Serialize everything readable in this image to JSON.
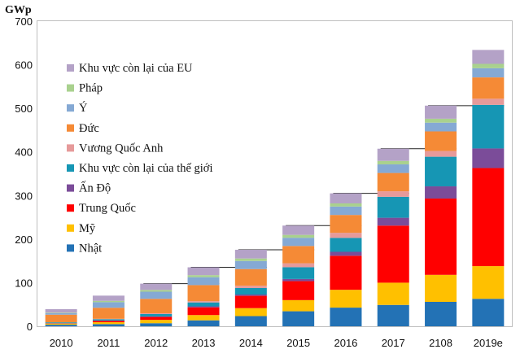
{
  "chart_data": {
    "type": "bar",
    "stacked": true,
    "y_unit": "GWp",
    "ylim": [
      0,
      700
    ],
    "yticks": [
      0,
      100,
      200,
      300,
      400,
      500,
      600,
      700
    ],
    "categories": [
      "2010",
      "2011",
      "2012",
      "2013",
      "2014",
      "2015",
      "2016",
      "2017",
      "2108",
      "2019e"
    ],
    "series": [
      {
        "name": "Nhật",
        "color": "#2372b5",
        "values": [
          3.6,
          4.9,
          7.0,
          13.6,
          23.3,
          34.4,
          42.8,
          49.0,
          56.0,
          63.0
        ]
      },
      {
        "name": "Mỹ",
        "color": "#ffc000",
        "values": [
          2.5,
          4.4,
          7.7,
          12.1,
          18.3,
          25.6,
          40.9,
          51.0,
          62.0,
          75.0
        ]
      },
      {
        "name": "Trung Quốc",
        "color": "#ff0000",
        "values": [
          0.8,
          3.3,
          6.7,
          17.7,
          28.2,
          43.5,
          78.1,
          131.0,
          175.0,
          225.0
        ]
      },
      {
        "name": "Ấn Độ",
        "color": "#7b4c99",
        "values": [
          0.1,
          0.5,
          1.2,
          2.3,
          3.0,
          5.0,
          9.0,
          18.0,
          28.0,
          45.0
        ]
      },
      {
        "name": "Khu vực còn lại của thế giới",
        "color": "#1696b4",
        "values": [
          2.0,
          3.0,
          5.5,
          9.0,
          15.0,
          27.0,
          32.0,
          48.0,
          68.0,
          100.0
        ]
      },
      {
        "name": "Vương Quốc Anh",
        "color": "#e69a9a",
        "values": [
          0.1,
          1.0,
          1.8,
          3.0,
          5.2,
          9.0,
          11.7,
          12.7,
          13.1,
          14.0
        ]
      },
      {
        "name": "Đức",
        "color": "#f58a36",
        "values": [
          17.5,
          25.4,
          33.0,
          36.7,
          38.2,
          39.7,
          40.9,
          42.0,
          45.0,
          49.0
        ]
      },
      {
        "name": "Ý",
        "color": "#85a9d4",
        "values": [
          3.5,
          12.8,
          16.4,
          18.2,
          18.6,
          18.9,
          19.3,
          19.7,
          20.1,
          21.0
        ]
      },
      {
        "name": "Pháp",
        "color": "#a9d18e",
        "values": [
          1.2,
          3.0,
          4.0,
          4.7,
          5.7,
          6.6,
          7.2,
          8.0,
          9.0,
          10.0
        ]
      },
      {
        "name": "Khu vực còn lại của EU",
        "color": "#b4a2c7",
        "values": [
          8.0,
          12.0,
          14.5,
          18.0,
          20.0,
          21.3,
          23.0,
          28.0,
          30.0,
          32.0
        ]
      }
    ],
    "legend_position": "top-left",
    "legend_order": [
      "Khu vực còn lại của EU",
      "Pháp",
      "Ý",
      "Đức",
      "Vương Quốc Anh",
      "Khu vực còn lại của thế giới",
      "Ấn Độ",
      "Trung Quốc",
      "Mỹ",
      "Nhật"
    ],
    "grid": false
  }
}
